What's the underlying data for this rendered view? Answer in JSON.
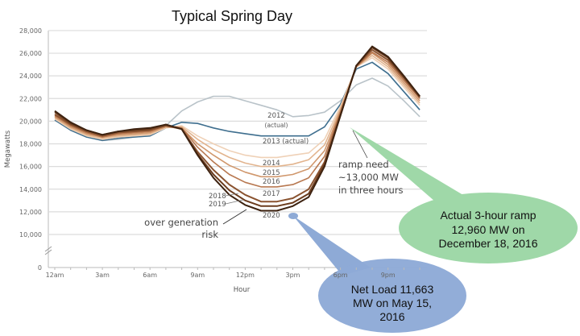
{
  "chart_data": {
    "type": "line",
    "title": "Typical Spring Day",
    "xlabel": "Hour",
    "ylabel": "Megawatts",
    "ylim": [
      0,
      28000
    ],
    "y_ticks": [
      "0",
      "10,000",
      "12,000",
      "14,000",
      "16,000",
      "18,000",
      "20,000",
      "22,000",
      "24,000",
      "26,000",
      "28,000"
    ],
    "x_ticks": [
      "12am",
      "3am",
      "6am",
      "9am",
      "12pm",
      "3pm",
      "6pm",
      "9pm"
    ],
    "x_hours": [
      0,
      1,
      2,
      3,
      4,
      5,
      6,
      7,
      8,
      9,
      10,
      11,
      12,
      13,
      14,
      15,
      16,
      17,
      18,
      19,
      20,
      21,
      22,
      23
    ],
    "grid": true,
    "series": [
      {
        "name": "2012 (actual)",
        "label": "2012",
        "sublabel": "(actual)",
        "color": "#b9c3c9",
        "values": [
          20100,
          19300,
          18700,
          18300,
          18400,
          18600,
          18700,
          19600,
          20900,
          21700,
          22200,
          22200,
          21800,
          21400,
          21000,
          20400,
          20500,
          20800,
          21800,
          23200,
          23800,
          23100,
          21800,
          20400
        ]
      },
      {
        "name": "2013 (actual)",
        "label": "2013 (actual)",
        "color": "#3e6e8e",
        "values": [
          20100,
          19200,
          18600,
          18300,
          18500,
          18600,
          18700,
          19400,
          19900,
          19800,
          19400,
          19100,
          18900,
          18700,
          18700,
          18700,
          18700,
          19500,
          21500,
          24600,
          25200,
          24200,
          22600,
          21000
        ]
      },
      {
        "name": "2014",
        "label": "2014",
        "color": "#efd1b7",
        "values": [
          20200,
          19300,
          18700,
          18400,
          18600,
          18700,
          18800,
          19400,
          19600,
          18700,
          18000,
          17400,
          17000,
          16800,
          16800,
          17000,
          17200,
          18400,
          21300,
          24800,
          25600,
          24600,
          23000,
          21400
        ]
      },
      {
        "name": "2015",
        "label": "2015",
        "color": "#e2b48e",
        "values": [
          20300,
          19400,
          18800,
          18500,
          18700,
          18800,
          18900,
          19500,
          19500,
          18400,
          17500,
          16800,
          16300,
          16000,
          16000,
          16200,
          16600,
          17900,
          21100,
          24800,
          25800,
          24800,
          23200,
          21600
        ]
      },
      {
        "name": "2016",
        "label": "2016",
        "color": "#d0976c",
        "values": [
          20400,
          19500,
          18900,
          18600,
          18800,
          18900,
          19000,
          19500,
          19400,
          18000,
          17000,
          16100,
          15500,
          15100,
          15100,
          15300,
          15800,
          17400,
          20900,
          24800,
          26000,
          25000,
          23400,
          21800
        ]
      },
      {
        "name": "2017",
        "label": "2017",
        "color": "#b87850",
        "values": [
          20500,
          19600,
          19000,
          18600,
          18900,
          19000,
          19100,
          19600,
          19400,
          17700,
          16400,
          15300,
          14600,
          14200,
          14200,
          14400,
          15000,
          16900,
          20800,
          24800,
          26100,
          25200,
          23600,
          22000
        ]
      },
      {
        "name": "2018",
        "label": "2018",
        "color": "#8a5330",
        "values": [
          20600,
          19700,
          19100,
          18700,
          19000,
          19100,
          19200,
          19600,
          19300,
          17300,
          15700,
          14400,
          13500,
          12900,
          12900,
          13200,
          14000,
          16400,
          20600,
          24900,
          26300,
          25400,
          23800,
          22100
        ]
      },
      {
        "name": "2019",
        "label": "2019",
        "color": "#6b3c1e",
        "values": [
          20800,
          19800,
          19200,
          18800,
          19100,
          19200,
          19300,
          19700,
          19300,
          17100,
          15300,
          13900,
          13000,
          12500,
          12500,
          12800,
          13600,
          16200,
          20500,
          24900,
          26500,
          25600,
          23900,
          22200
        ]
      },
      {
        "name": "2020",
        "label": "2020",
        "color": "#3d2210",
        "values": [
          20900,
          19900,
          19200,
          18800,
          19100,
          19300,
          19400,
          19700,
          19300,
          17000,
          15000,
          13500,
          12600,
          12100,
          12100,
          12500,
          13300,
          16000,
          20500,
          24900,
          26600,
          25700,
          24000,
          22200
        ]
      }
    ],
    "annotations": {
      "over_generation": [
        "over generation",
        "risk"
      ],
      "ramp_need": [
        "ramp need",
        "~13,000 MW",
        "in three hours"
      ]
    },
    "callouts": {
      "green": {
        "lines": [
          "Actual 3-hour ramp",
          "12,960 MW on",
          "December 18, 2016"
        ],
        "color": "#9fd8a8"
      },
      "blue": {
        "lines": [
          "Net Load 11,663",
          "MW on May 15,",
          "2016"
        ],
        "color": "#8eaad6",
        "point_mw": 11663
      }
    }
  }
}
